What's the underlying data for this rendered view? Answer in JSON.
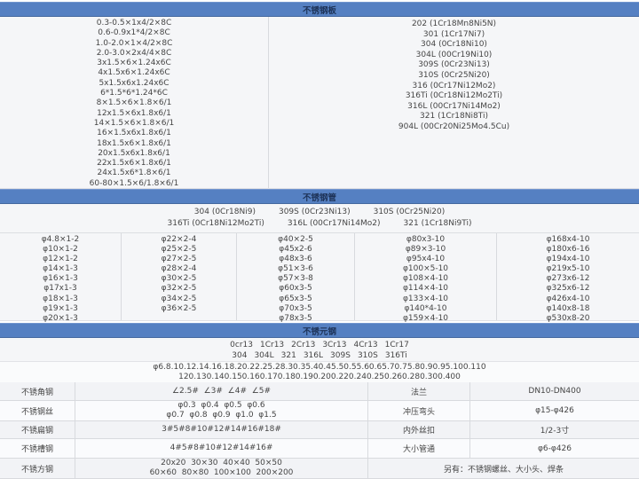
{
  "colors": {
    "header_bg": "#5580c2",
    "header_text": "#1d3257",
    "body_bg": "#f5f6f8",
    "border": "#d8dade",
    "text": "#454545"
  },
  "plate": {
    "title": "不锈钢板",
    "sizes": [
      "0.3-0.5×1x4/2×8C",
      "0.6-0.9x1*4/2×8C",
      "1.0-2.0×1×4/2×8C",
      "2.0-3.0×2x4/4×8C",
      "3x1.5×6×1.24x6C",
      "4x1.5x6×1.24x6C",
      "5x1.5x6x1.24x6C",
      "6*1.5*6*1.24*6C",
      "8×1.5×6×1.8×6/1",
      "12x1.5×6x1.8x6/1",
      "14×1.5×6×1.8×6/1",
      "16×1.5x6x1.8x6/1",
      "18x1.5x6×1.8x6/1",
      "20x1.5x6x1.8x6/1",
      "22x1.5x6×1.8x6/1",
      "24x1.5x6*1.8×6/1",
      "60-80×1.5×6/1.8×6/1"
    ],
    "grades": [
      "202  (1Cr18Mn8Ni5N)",
      "301  (1Cr17Ni7)",
      "304  (0Cr18Ni10)",
      "304L  (00Cr19Ni10)",
      "309S  (0Cr23Ni13)",
      "310S  (0Cr25Ni20)",
      "316  (0Cr17Ni12Mo2)",
      "316Ti  (0Cr18Ni12Mo2Ti)",
      "316L  (00Cr17Ni14Mo2)",
      "321  (1Cr18Ni8Ti)",
      "904L  (00Cr20Ni25Mo4.5Cu)"
    ]
  },
  "pipe": {
    "title": "不锈钢管",
    "grades_row1": [
      "304  (0Cr18Ni9)",
      "309S  (0Cr23Ni13)",
      "310S  (0Cr25Ni20)"
    ],
    "grades_row2": [
      "316Ti  (0Cr18Ni12Mo2Ti)",
      "316L  (00Cr17Ni14Mo2)",
      "321  (1Cr18Ni9Ti)"
    ],
    "columns": [
      [
        "φ4.8×1-2",
        "φ10×1-2",
        "φ12×1-2",
        "φ14×1-3",
        "φ16×1-3",
        "φ17x1-3",
        "φ18×1-3",
        "φ19×1-3",
        "φ20×1-3"
      ],
      [
        "φ22×2-4",
        "φ25×2-5",
        "φ27×2-5",
        "φ28×2-4",
        "φ30×2-5",
        "φ32×2-5",
        "φ34×2-5",
        "φ36×2-5"
      ],
      [
        "φ40×2-5",
        "φ45x2-6",
        "φ48x3-6",
        "φ51×3-6",
        "φ57×3-8",
        "φ60x3-5",
        "φ65x3-5",
        "φ70x3-5",
        "φ78x3-5"
      ],
      [
        "φ80x3-10",
        "φ89×3-10",
        "φ95x4-10",
        "φ100×5-10",
        "φ108×4-10",
        "φ114×4-10",
        "φ133×4-10",
        "φ140*4-10",
        "φ159×4-10"
      ],
      [
        "φ168x4-10",
        "φ180x6-16",
        "φ194x4-10",
        "φ219x5-10",
        "φ273x6-12",
        "φ325x6-12",
        "φ426x4-10",
        "φ140x8-18",
        "φ530x8-20"
      ]
    ]
  },
  "round": {
    "title": "不锈元钢",
    "grades_row1": [
      "0cr13",
      "1Cr13",
      "2Cr13",
      "3Cr13",
      "4Cr13",
      "1Cr17"
    ],
    "grades_row2": [
      "304",
      "304L",
      "321",
      "316L",
      "309S",
      "310S",
      "316Ti"
    ],
    "sizes_line1": "φ6.8.10.12.14.16.18.20.22.25.28.30.35.40.45.50.55.60.65.70.75.80.90.95.100.110",
    "sizes_line2": "120.130.140.150.160.170.180.190.200.220.240.250.260.280.300.400"
  },
  "misc": {
    "rows": [
      {
        "left_label": "不锈角钢",
        "left_value_lines": [
          "∠2.5#  ∠3#  ∠4#  ∠5#"
        ],
        "right_label": "法兰",
        "right_value": "DN10-DN400"
      },
      {
        "left_label": "不锈钢丝",
        "left_value_lines": [
          "φ0.3  φ0.4  φ0.5  φ0.6",
          "φ0.7  φ0.8  φ0.9  φ1.0  φ1.5"
        ],
        "right_label": "冲压弯头",
        "right_value": "φ15-φ426"
      },
      {
        "left_label": "不锈扁钢",
        "left_value_lines": [
          "3#5#8#10#12#14#16#18#"
        ],
        "right_label": "内外丝扣",
        "right_value": "1/2-3寸"
      },
      {
        "left_label": "不锈槽钢",
        "left_value_lines": [
          "4#5#8#10#12#14#16#"
        ],
        "right_label": "大小管通",
        "right_value": "φ6-φ426"
      },
      {
        "left_label": "不锈方钢",
        "left_value_lines": [
          "20x20  30×30  40×40  50×50",
          "60×60  80×80  100×100  200×200"
        ],
        "note": "另有：不锈钢螺丝、大小头、焊条"
      }
    ]
  }
}
